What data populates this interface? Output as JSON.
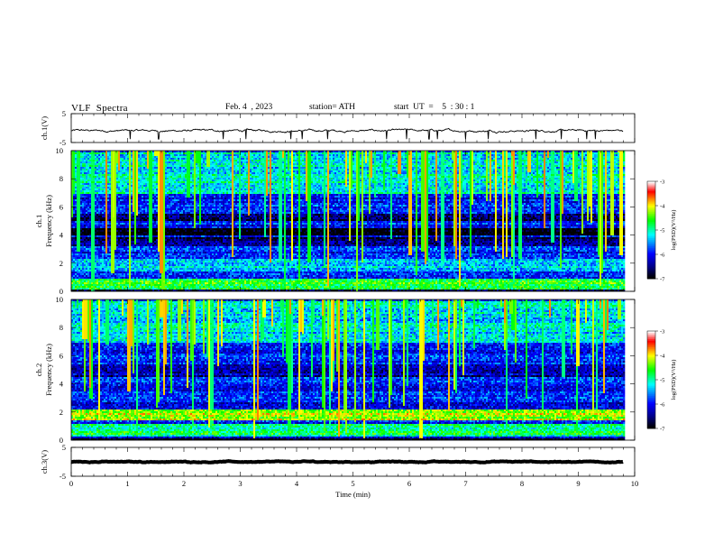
{
  "header": {
    "title": "VLF  Spectra",
    "date": "Feb. 4  , 2023",
    "station": "station= ATH",
    "start_ut": "start  UT  =    5  : 30 : 1"
  },
  "x_axis": {
    "label": "Time  (min)",
    "ticks": [
      "0",
      "1",
      "2",
      "3",
      "4",
      "5",
      "6",
      "7",
      "8",
      "9",
      "10"
    ],
    "range": [
      0,
      10
    ],
    "data_end": 9.8
  },
  "ch1_waveform": {
    "ylabel": "ch.1(V)",
    "ticks": [
      "5",
      "-5"
    ],
    "ylim": [
      -5,
      5
    ]
  },
  "ch1_spectrogram": {
    "ylabel_ch": "ch.1",
    "ylabel": "Frequency  (kHz)",
    "ticks": [
      "0",
      "2",
      "4",
      "6",
      "8",
      "10"
    ],
    "ylim": [
      0,
      10
    ]
  },
  "ch2_spectrogram": {
    "ylabel_ch": "ch.2",
    "ylabel": "Frequency  (kHz)",
    "ticks": [
      "0",
      "2",
      "4",
      "6",
      "8",
      "10"
    ],
    "ylim": [
      0,
      10
    ]
  },
  "ch3_waveform": {
    "ylabel": "ch.3(V)",
    "ticks": [
      "5",
      "-5"
    ],
    "ylim": [
      -5,
      5
    ]
  },
  "colorbar": {
    "label": "log(PSD)(V²/Hz)",
    "ticks": [
      "-3",
      "-4",
      "-5",
      "-6",
      "-7"
    ],
    "range": [
      -7,
      -3
    ]
  },
  "chart_data": [
    {
      "type": "line",
      "panel": "ch.1(V)",
      "x_range": [
        0,
        9.8
      ],
      "y_baseline": -0.9,
      "y_variation": 0.5,
      "spikes_x": [
        1.05,
        1.55,
        2.7,
        3.1,
        3.9,
        4.1,
        4.55,
        5.6,
        5.95,
        6.35,
        6.5,
        7.0,
        7.4,
        8.25,
        8.7,
        9.15,
        9.3
      ],
      "spike_depth": -3.8
    },
    {
      "type": "heatmap",
      "panel": "ch.1",
      "x_range": [
        0,
        9.8
      ],
      "y_range": [
        0,
        10
      ],
      "color_scale": [
        "#000000",
        "#00008b",
        "#0000ff",
        "#00ffff",
        "#00ff00",
        "#ffff00",
        "#ff0000",
        "#ffffff"
      ],
      "bands_khz": [
        {
          "range": [
            4.0,
            4.6
          ],
          "level": -7.0
        },
        {
          "range": [
            5.1,
            5.6
          ],
          "level": -6.6
        },
        {
          "range": [
            3.3,
            3.9
          ],
          "level": -6.6
        },
        {
          "range": [
            1.5,
            2.4
          ],
          "level": -5.3
        },
        {
          "range": [
            0.2,
            1.0
          ],
          "level": -4.6
        },
        {
          "range": [
            0.0,
            0.2
          ],
          "level": -7.0
        },
        {
          "range": [
            7.0,
            10.0
          ],
          "level": -5.2
        }
      ]
    },
    {
      "type": "heatmap",
      "panel": "ch.2",
      "x_range": [
        0,
        9.8
      ],
      "y_range": [
        0,
        10
      ],
      "color_scale": [
        "#000000",
        "#00008b",
        "#0000ff",
        "#00ffff",
        "#00ff00",
        "#ffff00",
        "#ff0000",
        "#ffffff"
      ],
      "bands_khz": [
        {
          "range": [
            4.5,
            5.5
          ],
          "level": -6.4
        },
        {
          "range": [
            1.5,
            2.3
          ],
          "level": -4.3
        },
        {
          "range": [
            0.3,
            1.2
          ],
          "level": -4.9
        },
        {
          "range": [
            0.0,
            0.25
          ],
          "level": -7.0
        },
        {
          "range": [
            7.0,
            10.0
          ],
          "level": -5.3
        }
      ]
    },
    {
      "type": "line",
      "panel": "ch.3(V)",
      "x_range": [
        0,
        9.8
      ],
      "y_baseline": 0.0,
      "y_variation": 0.2
    }
  ]
}
